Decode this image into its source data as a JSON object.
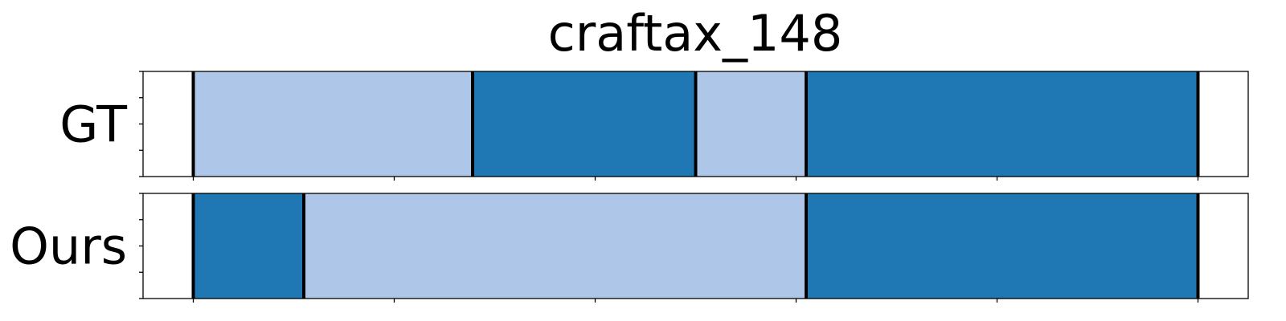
{
  "chart_data": {
    "type": "bar",
    "title": "craftax_148",
    "xlim": [
      -25,
      525
    ],
    "x_tick_count": 6,
    "x_tick_step": 100,
    "y_tick_count": 5,
    "colors": {
      "light": "#aec7e8",
      "dark": "#1f77b4",
      "boundary": "#000000"
    },
    "rows": [
      {
        "label": "GT",
        "segments": [
          {
            "start": 0,
            "end": 139,
            "color": "light"
          },
          {
            "start": 139,
            "end": 250,
            "color": "dark"
          },
          {
            "start": 250,
            "end": 305,
            "color": "light"
          },
          {
            "start": 305,
            "end": 500,
            "color": "dark"
          }
        ]
      },
      {
        "label": "Ours",
        "segments": [
          {
            "start": 0,
            "end": 55,
            "color": "dark"
          },
          {
            "start": 55,
            "end": 305,
            "color": "light"
          },
          {
            "start": 305,
            "end": 500,
            "color": "dark"
          }
        ]
      }
    ]
  }
}
